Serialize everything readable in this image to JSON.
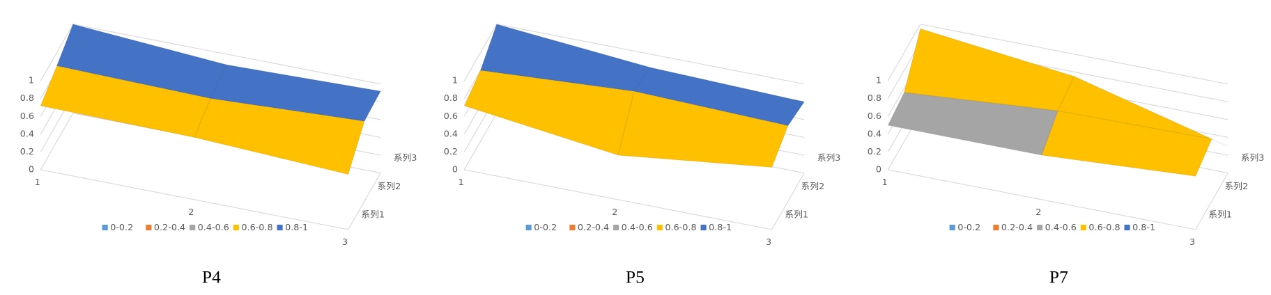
{
  "chart_data": [
    {
      "type": "surface",
      "caption": "P4",
      "categories": [
        "1",
        "2",
        "3"
      ],
      "series": [
        {
          "name": "系列1",
          "values": [
            0.72,
            0.7,
            0.62
          ]
        },
        {
          "name": "系列2",
          "values": [
            0.85,
            0.82,
            0.9
          ]
        },
        {
          "name": "系列3",
          "values": [
            1.0,
            0.88,
            0.92
          ]
        }
      ],
      "zlim": [
        0,
        1
      ],
      "zticks": [
        0,
        0.2,
        0.4,
        0.6,
        0.8,
        1
      ],
      "legend": [
        {
          "name": "0-0.2",
          "color": "#5b9bd5"
        },
        {
          "name": "0.2-0.4",
          "color": "#ed7d31"
        },
        {
          "name": "0.4-0.6",
          "color": "#a5a5a5"
        },
        {
          "name": "0.6-0.8",
          "color": "#ffc000"
        },
        {
          "name": "0.8-1",
          "color": "#4472c4"
        }
      ]
    },
    {
      "type": "surface",
      "caption": "P5",
      "categories": [
        "1",
        "2",
        "3"
      ],
      "series": [
        {
          "name": "系列1",
          "values": [
            0.72,
            0.5,
            0.7
          ]
        },
        {
          "name": "系列2",
          "values": [
            0.8,
            0.9,
            0.85
          ]
        },
        {
          "name": "系列3",
          "values": [
            1.0,
            0.85,
            0.8
          ]
        }
      ],
      "zlim": [
        0,
        1
      ],
      "zticks": [
        0,
        0.2,
        0.4,
        0.6,
        0.8,
        1
      ],
      "legend": [
        {
          "name": "0-0.2",
          "color": "#5b9bd5"
        },
        {
          "name": "0.2-0.4",
          "color": "#ed7d31"
        },
        {
          "name": "0.4-0.6",
          "color": "#a5a5a5"
        },
        {
          "name": "0.6-0.8",
          "color": "#ffc000"
        },
        {
          "name": "0.8-1",
          "color": "#4472c4"
        }
      ]
    },
    {
      "type": "surface",
      "caption": "P7",
      "categories": [
        "1",
        "2",
        "3"
      ],
      "series": [
        {
          "name": "系列1",
          "values": [
            0.5,
            0.5,
            0.6
          ]
        },
        {
          "name": "系列2",
          "values": [
            0.55,
            0.68,
            0.7
          ]
        },
        {
          "name": "系列3",
          "values": [
            0.95,
            0.75,
            0.3
          ]
        }
      ],
      "zlim": [
        0,
        1
      ],
      "zticks": [
        0,
        0.2,
        0.4,
        0.6,
        0.8,
        1
      ],
      "legend": [
        {
          "name": "0-0.2",
          "color": "#5b9bd5"
        },
        {
          "name": "0.2-0.4",
          "color": "#ed7d31"
        },
        {
          "name": "0.4-0.6",
          "color": "#a5a5a5"
        },
        {
          "name": "0.6-0.8",
          "color": "#ffc000"
        },
        {
          "name": "0.8-1",
          "color": "#4472c4"
        }
      ]
    }
  ]
}
